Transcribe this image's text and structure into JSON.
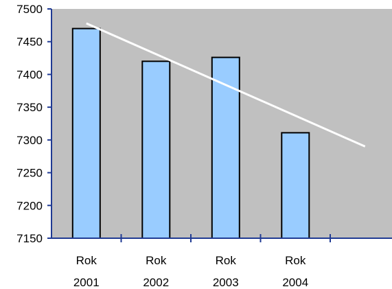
{
  "chart_data": {
    "type": "bar",
    "categories": [
      {
        "line1": "Rok",
        "line2": "2001"
      },
      {
        "line1": "Rok",
        "line2": "2002"
      },
      {
        "line1": "Rok",
        "line2": "2003"
      },
      {
        "line1": "Rok",
        "line2": "2004"
      }
    ],
    "values": [
      7470,
      7420,
      7426,
      7311
    ],
    "ylim": [
      7150,
      7500
    ],
    "yticks": [
      7500,
      7450,
      7400,
      7350,
      7300,
      7250,
      7200,
      7150
    ],
    "trendline": {
      "type": "linear",
      "start_value": 7478,
      "end_value": 7290,
      "color": "#ffffff"
    },
    "grid": false,
    "legend": "none",
    "title": "",
    "xlabel": "",
    "ylabel": "",
    "colors": {
      "plot_background": "#c0c0c0",
      "bar_fill": "#99ccff",
      "bar_stroke": "#000000",
      "axis": "#1f3a93",
      "trendline": "#ffffff"
    }
  }
}
